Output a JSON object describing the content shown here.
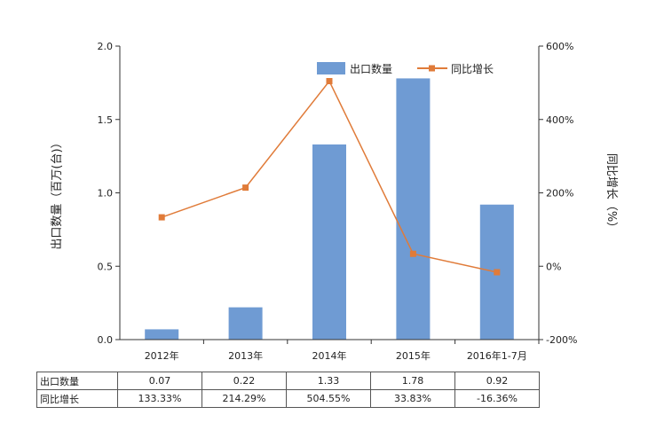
{
  "chart_data": {
    "type": "bar",
    "categories": [
      "2012年",
      "2013年",
      "2014年",
      "2015年",
      "2016年1-7月"
    ],
    "series": [
      {
        "name": "出口数量",
        "type": "bar",
        "axis": "left",
        "color": "#6f9bd3",
        "values": [
          0.07,
          0.22,
          1.33,
          1.78,
          0.92
        ]
      },
      {
        "name": "同比增长",
        "type": "line",
        "axis": "right",
        "color": "#e07b39",
        "values": [
          133.33,
          214.29,
          504.55,
          33.83,
          -16.36
        ]
      }
    ],
    "ylabel": "出口数量（百万(台)）",
    "ylabel_right": "同比增长（%）",
    "ylim": [
      0,
      2.0
    ],
    "ylim_right": [
      -200,
      600
    ],
    "yticks": [
      "0.0",
      "0.5",
      "1.0",
      "1.5",
      "2.0"
    ],
    "yticks_right": [
      "-200%",
      "0%",
      "200%",
      "400%",
      "600%"
    ],
    "legend_position": "top-right",
    "grid": false
  },
  "table": {
    "rows": [
      {
        "label": "出口数量",
        "values": [
          "0.07",
          "0.22",
          "1.33",
          "1.78",
          "0.92"
        ]
      },
      {
        "label": "同比增长",
        "values": [
          "133.33%",
          "214.29%",
          "504.55%",
          "33.83%",
          "-16.36%"
        ]
      }
    ]
  }
}
